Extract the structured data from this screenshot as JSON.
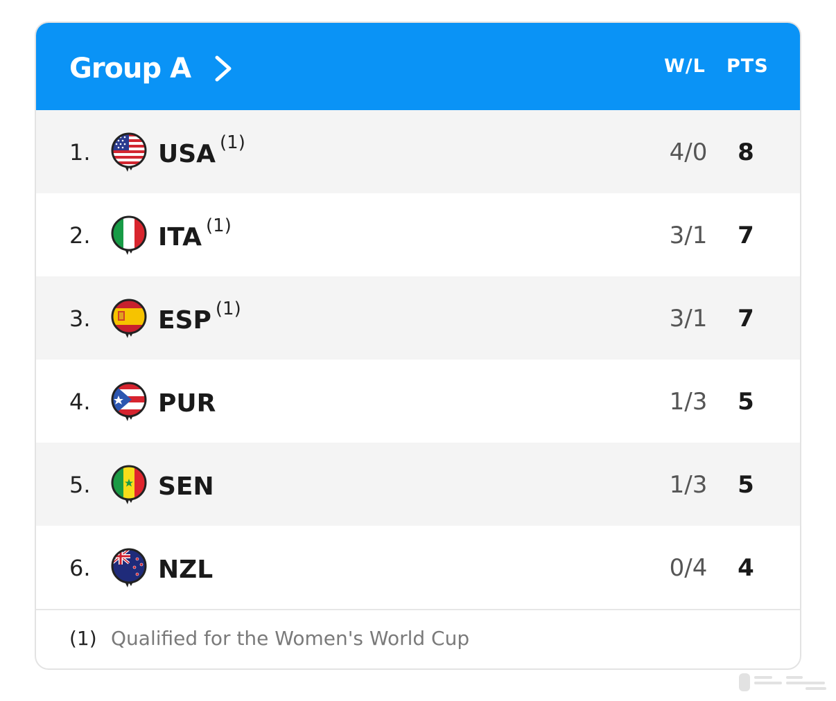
{
  "header": {
    "group_title": "Group A",
    "col_wl": "W/L",
    "col_pts": "PTS",
    "accent_color": "#0a93f6"
  },
  "rows": [
    {
      "rank": "1.",
      "team": "USA",
      "mark": "(1)",
      "wl": "4/0",
      "pts": "8",
      "flag": "usa-flag-icon"
    },
    {
      "rank": "2.",
      "team": "ITA",
      "mark": "(1)",
      "wl": "3/1",
      "pts": "7",
      "flag": "italy-flag-icon"
    },
    {
      "rank": "3.",
      "team": "ESP",
      "mark": "(1)",
      "wl": "3/1",
      "pts": "7",
      "flag": "spain-flag-icon"
    },
    {
      "rank": "4.",
      "team": "PUR",
      "mark": "",
      "wl": "1/3",
      "pts": "5",
      "flag": "puerto-rico-flag-icon"
    },
    {
      "rank": "5.",
      "team": "SEN",
      "mark": "",
      "wl": "1/3",
      "pts": "5",
      "flag": "senegal-flag-icon"
    },
    {
      "rank": "6.",
      "team": "NZL",
      "mark": "",
      "wl": "0/4",
      "pts": "4",
      "flag": "new-zealand-flag-icon"
    }
  ],
  "footer": {
    "mark": "(1)",
    "note": "Qualified for the Women's World Cup"
  }
}
